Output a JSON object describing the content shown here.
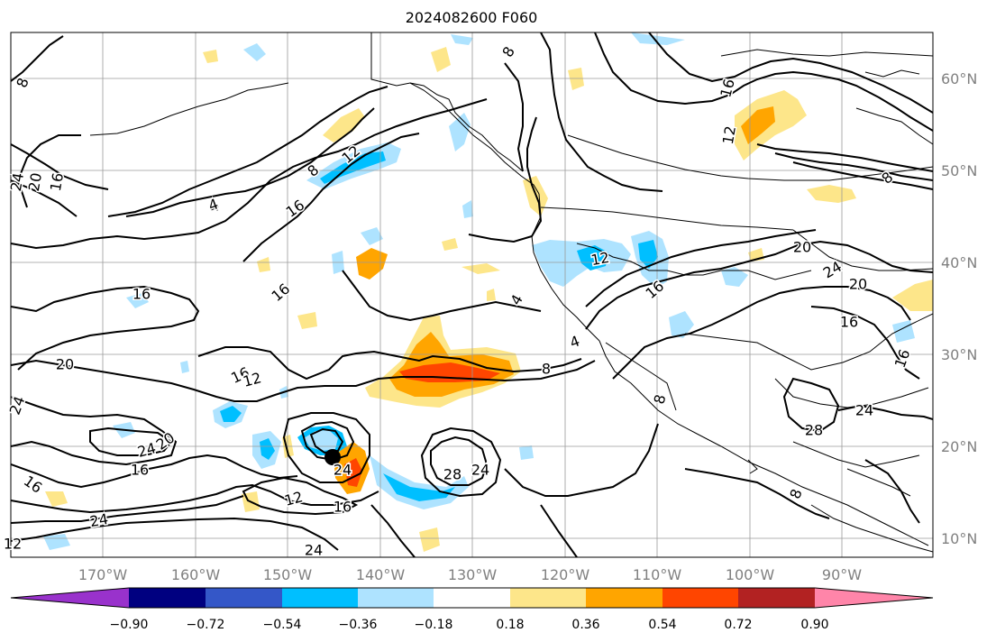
{
  "title": "2024082600 F060",
  "map": {
    "lon_labels": [
      "170°W",
      "160°W",
      "150°W",
      "140°W",
      "130°W",
      "120°W",
      "110°W",
      "100°W",
      "90°W"
    ],
    "lat_labels": [
      "60°N",
      "50°N",
      "40°N",
      "30°N",
      "20°N",
      "10°N"
    ],
    "storm_marker": {
      "lon": "145°W",
      "lat": "19°N"
    }
  },
  "colorbar": {
    "tick_labels": [
      "−0.90",
      "−0.72",
      "−0.54",
      "−0.36",
      "−0.18",
      "0.18",
      "0.36",
      "0.54",
      "0.72",
      "0.90"
    ],
    "colors": [
      "#9932cc",
      "#000080",
      "#3457c8",
      "#00bfff",
      "#aee3ff",
      "#ffffff",
      "#fde68a",
      "#ffa500",
      "#ff4500",
      "#b22222",
      "#ff85a9"
    ]
  },
  "contour_labels": [
    {
      "text": "8"
    },
    {
      "text": "24"
    },
    {
      "text": "20"
    },
    {
      "text": "16"
    },
    {
      "text": "8"
    },
    {
      "text": "12"
    },
    {
      "text": "4"
    },
    {
      "text": "16"
    },
    {
      "text": "8"
    },
    {
      "text": "16"
    },
    {
      "text": "12"
    },
    {
      "text": "16"
    },
    {
      "text": "20"
    },
    {
      "text": "16"
    },
    {
      "text": "12"
    },
    {
      "text": "24"
    },
    {
      "text": "24"
    },
    {
      "text": "20"
    },
    {
      "text": "16"
    },
    {
      "text": "16"
    },
    {
      "text": "24"
    },
    {
      "text": "12"
    },
    {
      "text": "16"
    },
    {
      "text": "24"
    },
    {
      "text": "28"
    },
    {
      "text": "24"
    },
    {
      "text": "8"
    },
    {
      "text": "24"
    },
    {
      "text": "4"
    },
    {
      "text": "4"
    },
    {
      "text": "12"
    },
    {
      "text": "16"
    },
    {
      "text": "8"
    },
    {
      "text": "20"
    },
    {
      "text": "24"
    },
    {
      "text": "20"
    },
    {
      "text": "16"
    },
    {
      "text": "16"
    },
    {
      "text": "4"
    },
    {
      "text": "28"
    },
    {
      "text": "24"
    },
    {
      "text": "8"
    },
    {
      "text": "16"
    },
    {
      "text": "12"
    },
    {
      "text": "8"
    }
  ]
}
